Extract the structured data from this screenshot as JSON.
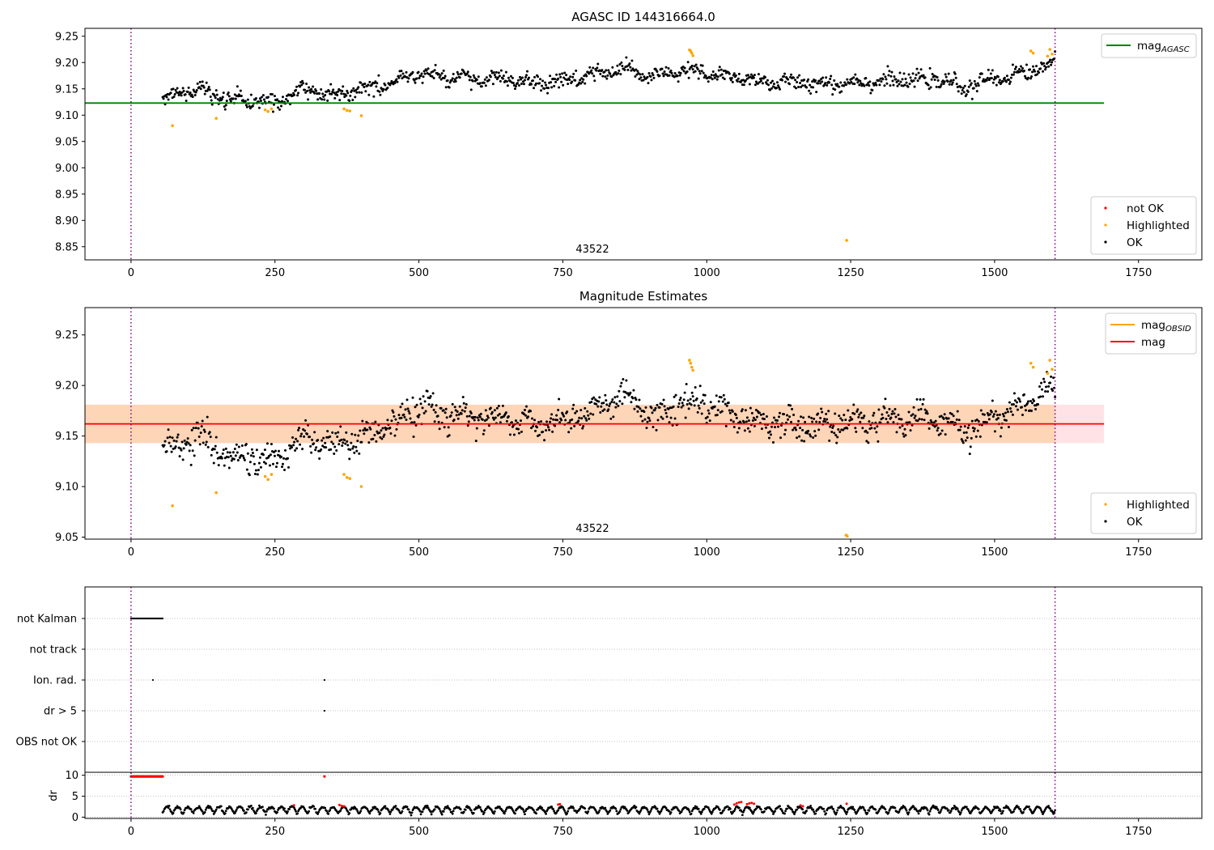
{
  "chart_data": [
    {
      "type": "scatter",
      "title": "AGASC ID 144316664.0",
      "xlim": [
        -80,
        1860
      ],
      "ylim": [
        8.825,
        9.265
      ],
      "xticks": [
        0,
        250,
        500,
        750,
        1000,
        1250,
        1500,
        1750
      ],
      "xtick_labels": [
        "0",
        "250",
        "500",
        "750",
        "1000",
        "1250",
        "1500",
        "1750"
      ],
      "yticks": [
        8.85,
        8.9,
        8.95,
        9.0,
        9.05,
        9.1,
        9.15,
        9.2,
        9.25
      ],
      "ytick_labels": [
        "8.85",
        "8.90",
        "8.95",
        "9.00",
        "9.05",
        "9.10",
        "9.15",
        "9.20",
        "9.25"
      ],
      "vlines": [
        0,
        1605
      ],
      "annotation": {
        "text": "43522",
        "x": 800,
        "y": 8.835
      },
      "lines": [
        {
          "name": "mag",
          "subscript": "AGASC",
          "color": "#008000",
          "y": 9.123,
          "x": [
            -80,
            1690
          ]
        }
      ],
      "legend_top": [
        {
          "label": "mag",
          "subscript": "AGASC",
          "color": "#008000"
        }
      ],
      "legend_bottom": [
        {
          "label": "not OK",
          "color": "#ff0000"
        },
        {
          "label": "Highlighted",
          "color": "#ffa500"
        },
        {
          "label": "OK",
          "color": "#000000"
        }
      ],
      "series": [
        {
          "name": "OK",
          "color": "#000000",
          "x_start": 55,
          "x_end": 1605,
          "count": 1100,
          "profile": [
            [
              55,
              9.135
            ],
            [
              120,
              9.15
            ],
            [
              160,
              9.13
            ],
            [
              250,
              9.125
            ],
            [
              300,
              9.15
            ],
            [
              350,
              9.14
            ],
            [
              400,
              9.15
            ],
            [
              450,
              9.16
            ],
            [
              500,
              9.18
            ],
            [
              550,
              9.17
            ],
            [
              650,
              9.168
            ],
            [
              700,
              9.16
            ],
            [
              750,
              9.165
            ],
            [
              800,
              9.175
            ],
            [
              850,
              9.188
            ],
            [
              900,
              9.172
            ],
            [
              970,
              9.185
            ],
            [
              1000,
              9.178
            ],
            [
              1100,
              9.163
            ],
            [
              1200,
              9.16
            ],
            [
              1300,
              9.165
            ],
            [
              1400,
              9.168
            ],
            [
              1450,
              9.152
            ],
            [
              1500,
              9.17
            ],
            [
              1550,
              9.18
            ],
            [
              1605,
              9.2
            ]
          ],
          "spread": 0.012
        },
        {
          "name": "Highlighted",
          "color": "#ffa500",
          "x": [
            72,
            148,
            233,
            238,
            244,
            370,
            375,
            380,
            400,
            970,
            972,
            974,
            976,
            1243,
            1563,
            1567,
            1592,
            1596,
            1600
          ],
          "y": [
            9.08,
            9.094,
            9.11,
            9.107,
            9.112,
            9.112,
            9.109,
            9.108,
            9.099,
            9.224,
            9.222,
            9.218,
            9.213,
            8.862,
            9.222,
            9.218,
            9.212,
            9.225,
            9.216
          ]
        }
      ]
    },
    {
      "type": "scatter",
      "title": "Magnitude Estimates",
      "xlim": [
        -80,
        1860
      ],
      "ylim": [
        9.048,
        9.277
      ],
      "xticks": [
        0,
        250,
        500,
        750,
        1000,
        1250,
        1500,
        1750
      ],
      "xtick_labels": [
        "0",
        "250",
        "500",
        "750",
        "1000",
        "1250",
        "1500",
        "1750"
      ],
      "yticks": [
        9.05,
        9.1,
        9.15,
        9.2,
        9.25
      ],
      "ytick_labels": [
        "9.05",
        "9.10",
        "9.15",
        "9.20",
        "9.25"
      ],
      "vlines": [
        0,
        1605
      ],
      "annotation": {
        "text": "43522",
        "x": 800,
        "y": 9.054
      },
      "bands": [
        {
          "color": "#ffb6c1",
          "y": [
            9.143,
            9.181
          ],
          "x": [
            -80,
            1690
          ],
          "opacity": 0.4
        },
        {
          "color": "#ffa500",
          "y": [
            9.143,
            9.181
          ],
          "x": [
            -80,
            1605
          ],
          "opacity": 0.2
        }
      ],
      "lines": [
        {
          "name": "mag",
          "color": "#ff0000",
          "y": 9.162,
          "x": [
            -80,
            1690
          ]
        }
      ],
      "legend_top": [
        {
          "label": "mag",
          "subscript": "OBSID",
          "color": "#ffa500"
        },
        {
          "label": "mag",
          "color": "#ff0000"
        }
      ],
      "legend_bottom": [
        {
          "label": "Highlighted",
          "color": "#ffa500"
        },
        {
          "label": "OK",
          "color": "#000000"
        }
      ],
      "series": [
        {
          "name": "OK",
          "color": "#000000",
          "x_start": 55,
          "x_end": 1605,
          "count": 1100,
          "profile": [
            [
              55,
              9.135
            ],
            [
              120,
              9.15
            ],
            [
              160,
              9.13
            ],
            [
              250,
              9.125
            ],
            [
              300,
              9.15
            ],
            [
              350,
              9.14
            ],
            [
              400,
              9.15
            ],
            [
              450,
              9.16
            ],
            [
              500,
              9.18
            ],
            [
              550,
              9.17
            ],
            [
              650,
              9.168
            ],
            [
              700,
              9.16
            ],
            [
              750,
              9.165
            ],
            [
              800,
              9.175
            ],
            [
              850,
              9.188
            ],
            [
              900,
              9.172
            ],
            [
              970,
              9.185
            ],
            [
              1000,
              9.178
            ],
            [
              1100,
              9.163
            ],
            [
              1200,
              9.16
            ],
            [
              1300,
              9.165
            ],
            [
              1400,
              9.168
            ],
            [
              1450,
              9.152
            ],
            [
              1500,
              9.17
            ],
            [
              1550,
              9.18
            ],
            [
              1605,
              9.2
            ]
          ],
          "spread": 0.012
        },
        {
          "name": "Highlighted",
          "color": "#ffa500",
          "x": [
            72,
            148,
            233,
            238,
            244,
            370,
            375,
            380,
            400,
            970,
            972,
            974,
            976,
            1242,
            1244,
            1563,
            1567,
            1592,
            1596,
            1600
          ],
          "y": [
            9.081,
            9.094,
            9.11,
            9.107,
            9.112,
            9.112,
            9.109,
            9.108,
            9.1,
            9.225,
            9.222,
            9.218,
            9.215,
            9.052,
            9.051,
            9.222,
            9.218,
            9.212,
            9.225,
            9.216
          ]
        }
      ]
    },
    {
      "type": "scatter",
      "xlim": [
        -80,
        1860
      ],
      "xticks": [
        0,
        250,
        500,
        750,
        1000,
        1250,
        1500,
        1750
      ],
      "xtick_labels": [
        "0",
        "250",
        "500",
        "750",
        "1000",
        "1250",
        "1500",
        "1750"
      ],
      "vlines": [
        0,
        1605
      ],
      "flags": {
        "categories": [
          "not Kalman",
          "not track",
          "Ion. rad.",
          "dr > 5",
          "OBS not OK"
        ],
        "points": [
          {
            "category": "not Kalman",
            "x_start": 0,
            "x_end": 55,
            "count": 45
          },
          {
            "category": "Ion. rad.",
            "x": [
              38,
              336
            ]
          },
          {
            "category": "dr > 5",
            "x": [
              336
            ]
          }
        ]
      },
      "dr": {
        "ylabel": "dr",
        "ylim": [
          -0.3,
          10.7
        ],
        "yticks": [
          0,
          5,
          10
        ],
        "ytick_labels": [
          "0",
          "5",
          "10"
        ],
        "clipped": {
          "color": "#ff0000",
          "y": 9.7,
          "x_start": 0,
          "x_end": 55,
          "count": 45,
          "extra_x": [
            336
          ]
        },
        "series": [
          {
            "name": "OK",
            "color": "#000000",
            "x_start": 55,
            "x_end": 1605,
            "count": 1100,
            "y_range": [
              0.4,
              2.8
            ]
          },
          {
            "name": "not OK",
            "color": "#ff0000",
            "x": [
              283,
              362,
              366,
              370,
              742,
              745,
              1048,
              1052,
              1056,
              1060,
              1070,
              1074,
              1078,
              1082,
              1163,
              1167,
              1243
            ],
            "y": [
              2.8,
              2.9,
              2.7,
              2.6,
              3.0,
              3.1,
              3.0,
              3.3,
              3.5,
              3.6,
              3.1,
              3.3,
              3.4,
              3.2,
              2.8,
              2.6,
              3.2
            ]
          }
        ]
      }
    }
  ]
}
